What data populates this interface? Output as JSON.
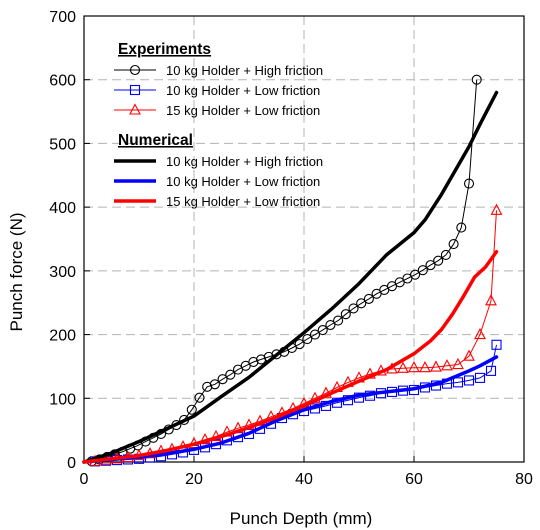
{
  "chart_data": {
    "type": "line",
    "xlabel": "Punch Depth (mm)",
    "ylabel": "Punch force (N)",
    "xlim": [
      0,
      80
    ],
    "ylim": [
      0,
      700
    ],
    "xticks": [
      0,
      20,
      40,
      60,
      80
    ],
    "yticks": [
      0,
      100,
      200,
      300,
      400,
      500,
      600,
      700
    ],
    "grid": "dashed",
    "legend_placement": "top-left",
    "legend_groups": [
      {
        "title": "Experiments",
        "series": [
          0,
          1,
          2
        ]
      },
      {
        "title": "Numerical",
        "series": [
          3,
          4,
          5
        ]
      }
    ],
    "series": [
      {
        "name": "10 kg Holder + High friction",
        "kind": "experiment",
        "marker": "circle",
        "color": "#000000",
        "x": [
          1.4,
          2.8,
          4.2,
          5.6,
          7,
          8.4,
          9.8,
          11.2,
          12.6,
          14,
          15.4,
          16.8,
          18.2,
          19.6,
          21,
          22.4,
          23.8,
          25.2,
          26.6,
          28,
          29.4,
          30.8,
          32.2,
          33.6,
          35,
          36.4,
          37.8,
          39.2,
          40.6,
          42,
          43.4,
          44.8,
          46.2,
          47.6,
          49,
          50.4,
          51.8,
          53.2,
          54.6,
          56,
          57.4,
          58.8,
          60.2,
          61.6,
          63,
          64.4,
          65.8,
          67.2,
          68.6,
          70,
          71.4
        ],
        "y": [
          1,
          4,
          8,
          12,
          16,
          21,
          26,
          32,
          38,
          44,
          51,
          58,
          66,
          82,
          101,
          118,
          122,
          130,
          137,
          145,
          151,
          157,
          161,
          165,
          169,
          173,
          179,
          185,
          193,
          200,
          207,
          215,
          222,
          232,
          241,
          249,
          256,
          264,
          270,
          276,
          282,
          288,
          294,
          301,
          309,
          316,
          325,
          342,
          368,
          437,
          600
        ]
      },
      {
        "name": "10 kg Holder + Low friction",
        "kind": "experiment",
        "marker": "square",
        "color": "#0000ff",
        "x": [
          2,
          4,
          6,
          8,
          10,
          12,
          14,
          16,
          18,
          20,
          22,
          24,
          26,
          28,
          30,
          32,
          34,
          36,
          38,
          40,
          42,
          44,
          46,
          48,
          50,
          52,
          54,
          56,
          58,
          60,
          62,
          64,
          66,
          68,
          70,
          72,
          74,
          75
        ],
        "y": [
          1,
          2,
          3,
          4,
          5,
          7,
          9,
          12,
          15,
          19,
          23,
          28,
          34,
          39,
          44,
          52,
          60,
          69,
          75,
          80,
          84,
          88,
          93,
          97,
          101,
          104,
          108,
          110,
          112,
          113,
          117,
          120,
          123,
          125,
          128,
          132,
          143,
          184
        ]
      },
      {
        "name": "15 kg Holder + Low friction",
        "kind": "experiment",
        "marker": "triangle",
        "color": "#ff0000",
        "x": [
          2,
          4,
          6,
          8,
          10,
          12,
          14,
          16,
          18,
          20,
          22,
          24,
          26,
          28,
          30,
          32,
          34,
          36,
          38,
          40,
          42,
          44,
          46,
          48,
          50,
          52,
          54,
          56,
          58,
          60,
          62,
          64,
          66,
          68,
          70,
          72,
          74,
          75
        ],
        "y": [
          1,
          3,
          5,
          7,
          10,
          13,
          17,
          20,
          24,
          29,
          35,
          40,
          47,
          53,
          58,
          64,
          71,
          77,
          84,
          92,
          100,
          108,
          117,
          125,
          132,
          138,
          143,
          146,
          147,
          148,
          148,
          149,
          151,
          153,
          166,
          200,
          253,
          395
        ]
      },
      {
        "name": "10 kg Holder + High friction",
        "kind": "numerical",
        "color": "#000000",
        "x": [
          0,
          5,
          10,
          15,
          20,
          25,
          30,
          35,
          40,
          45,
          50,
          55,
          60,
          62,
          65,
          68,
          70,
          72,
          75
        ],
        "y": [
          0,
          14,
          32,
          52,
          72,
          103,
          133,
          168,
          203,
          240,
          280,
          325,
          360,
          380,
          420,
          465,
          495,
          530,
          580
        ]
      },
      {
        "name": "10 kg Holder + Low friction",
        "kind": "numerical",
        "color": "#0000ff",
        "x": [
          0,
          5,
          10,
          15,
          20,
          25,
          30,
          35,
          40,
          45,
          50,
          55,
          60,
          65,
          70,
          72,
          75
        ],
        "y": [
          0,
          4,
          8,
          13,
          20,
          30,
          45,
          65,
          82,
          95,
          105,
          110,
          115,
          125,
          143,
          151,
          165
        ]
      },
      {
        "name": "15 kg Holder + Low friction",
        "kind": "numerical",
        "color": "#ff0000",
        "x": [
          0,
          5,
          10,
          15,
          20,
          25,
          30,
          35,
          40,
          45,
          50,
          55,
          60,
          63,
          65,
          67,
          69,
          71,
          73,
          75
        ],
        "y": [
          0,
          5,
          10,
          18,
          28,
          40,
          54,
          70,
          88,
          108,
          127,
          145,
          170,
          190,
          208,
          232,
          260,
          290,
          306,
          330
        ]
      }
    ]
  }
}
